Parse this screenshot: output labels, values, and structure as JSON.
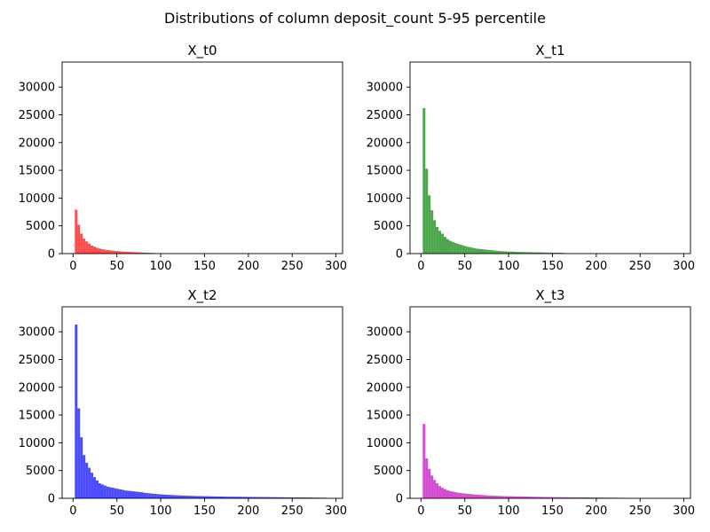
{
  "figure": {
    "suptitle": "Distributions of column deposit_count 5-95 percentile"
  },
  "chart_data": [
    {
      "type": "bar",
      "title": "X_t0",
      "color": "#ff0000",
      "alpha": 0.7,
      "xlim": [
        -12.5,
        307.5
      ],
      "ylim": [
        0,
        34500
      ],
      "xticks": [
        0,
        50,
        100,
        150,
        200,
        250,
        300
      ],
      "yticks": [
        0,
        5000,
        10000,
        15000,
        20000,
        25000,
        30000
      ],
      "bin_width": 3,
      "bin_start": 2,
      "values": [
        7900,
        5200,
        3600,
        2700,
        2200,
        1800,
        1450,
        1250,
        1050,
        900,
        780,
        700,
        640,
        580,
        530,
        480,
        440,
        400,
        360,
        330,
        300,
        280,
        260,
        240,
        220,
        200,
        180,
        160,
        140,
        120,
        90
      ]
    },
    {
      "type": "bar",
      "title": "X_t1",
      "color": "#008000",
      "alpha": 0.7,
      "xlim": [
        -12.5,
        307.5
      ],
      "ylim": [
        0,
        34500
      ],
      "xticks": [
        0,
        50,
        100,
        150,
        200,
        250,
        300
      ],
      "yticks": [
        0,
        5000,
        10000,
        15000,
        20000,
        25000,
        30000
      ],
      "bin_width": 3,
      "bin_start": 2,
      "values": [
        26200,
        15300,
        10500,
        7800,
        6000,
        4800,
        4100,
        3600,
        3000,
        2600,
        2300,
        2100,
        1900,
        1750,
        1600,
        1450,
        1300,
        1200,
        1100,
        1000,
        900,
        850,
        800,
        750,
        700,
        650,
        600,
        550,
        500,
        460,
        420,
        400,
        380,
        360,
        340,
        320,
        300,
        290,
        280,
        270,
        260,
        250,
        240,
        230,
        220,
        210,
        200,
        190,
        180,
        170,
        160,
        150,
        140,
        130
      ]
    },
    {
      "type": "bar",
      "title": "X_t2",
      "color": "#0000ff",
      "alpha": 0.7,
      "xlim": [
        -12.5,
        307.5
      ],
      "ylim": [
        0,
        34500
      ],
      "xticks": [
        0,
        50,
        100,
        150,
        200,
        250,
        300
      ],
      "yticks": [
        0,
        5000,
        10000,
        15000,
        20000,
        25000,
        30000
      ],
      "bin_width": 3,
      "bin_start": 2,
      "values": [
        31300,
        16200,
        11000,
        7800,
        6400,
        5500,
        4600,
        3800,
        3200,
        2700,
        2500,
        2300,
        2100,
        2000,
        1900,
        1800,
        1700,
        1600,
        1500,
        1400,
        1350,
        1300,
        1250,
        1200,
        1150,
        1100,
        1000,
        950,
        900,
        850,
        800,
        760,
        720,
        690,
        660,
        630,
        600,
        580,
        560,
        540,
        520,
        500,
        480,
        460,
        440,
        420,
        410,
        400,
        390,
        380,
        370,
        360,
        350,
        340,
        330,
        320,
        310,
        300,
        295,
        290,
        285,
        280,
        275,
        270,
        265,
        260,
        255,
        250,
        245,
        240,
        235,
        230,
        225,
        220,
        215,
        210,
        205,
        200,
        195,
        190,
        185,
        180,
        175,
        170,
        165,
        160,
        155,
        150,
        145,
        140,
        135,
        130,
        125,
        120,
        115,
        110
      ]
    },
    {
      "type": "bar",
      "title": "X_t3",
      "color": "#c000c0",
      "alpha": 0.7,
      "xlim": [
        -12.5,
        307.5
      ],
      "ylim": [
        0,
        34500
      ],
      "xticks": [
        0,
        50,
        100,
        150,
        200,
        250,
        300
      ],
      "yticks": [
        0,
        5000,
        10000,
        15000,
        20000,
        25000,
        30000
      ],
      "bin_width": 3,
      "bin_start": 2,
      "values": [
        13400,
        7200,
        5300,
        4100,
        3300,
        2700,
        2200,
        1900,
        1650,
        1450,
        1300,
        1200,
        1100,
        1000,
        950,
        900,
        850,
        800,
        750,
        700,
        660,
        620,
        590,
        560,
        530,
        500,
        480,
        460,
        440,
        420,
        400,
        390,
        380,
        370,
        360,
        350,
        340,
        330,
        320,
        310,
        300,
        290,
        280,
        270,
        260,
        250,
        240,
        235,
        230,
        225,
        220,
        215,
        210,
        205,
        200,
        195,
        190,
        185,
        180,
        175,
        170,
        165,
        160,
        155,
        150,
        145,
        140,
        135,
        130,
        125,
        120,
        115,
        110,
        105,
        100,
        95,
        90,
        85
      ]
    }
  ]
}
